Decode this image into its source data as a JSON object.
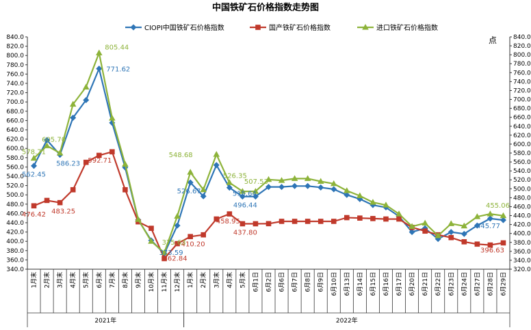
{
  "chart_data": {
    "type": "line",
    "title": "中国铁矿石价格指数走势图",
    "y_right_label": "点",
    "ylim": [
      340,
      840
    ],
    "y_right_lim": [
      320,
      840
    ],
    "y_ticks": [
      "340.0",
      "360.0",
      "380.0",
      "400.0",
      "420.0",
      "440.0",
      "460.0",
      "480.0",
      "500.0",
      "520.0",
      "540.0",
      "560.0",
      "580.0",
      "600.0",
      "620.0",
      "640.0",
      "660.0",
      "680.0",
      "700.0",
      "720.0",
      "740.0",
      "760.0",
      "780.0",
      "800.0",
      "820.0",
      "840.0"
    ],
    "y_right_ticks": [
      "320.0",
      "340.0",
      "360.0",
      "380.0",
      "400.0",
      "420.0",
      "440.0",
      "460.0",
      "480.0",
      "500.0",
      "520.0",
      "540.0",
      "560.0",
      "580.0",
      "600.0",
      "620.0",
      "640.0",
      "660.0",
      "680.0",
      "700.0",
      "720.0",
      "740.0",
      "760.0",
      "780.0",
      "800.0",
      "820.0",
      "840.0"
    ],
    "categories": [
      "1月末",
      "2月末",
      "3月末",
      "4月末",
      "5月末",
      "6月末",
      "7月末",
      "8月末",
      "9月末",
      "10月末",
      "11月末",
      "12月末",
      "1月末",
      "2月末",
      "3月末",
      "4月末",
      "5月末",
      "6月1日",
      "6月2日",
      "6月6日",
      "6月7日",
      "6月8日",
      "6月9日",
      "6月10日",
      "6月13日",
      "6月14日",
      "6月15日",
      "6月16日",
      "6月17日",
      "6月20日",
      "6月21日",
      "6月22日",
      "6月23日",
      "6月24日",
      "6月27日",
      "6月28日",
      "6月29日"
    ],
    "year_groups": [
      {
        "label": "2021年",
        "count": 12
      },
      {
        "label": "2022年",
        "count": 25
      }
    ],
    "legend_position": "top",
    "grid": false,
    "series": [
      {
        "name": "CIOPI中国铁矿石价格指数",
        "color": "#2E75B6",
        "marker": "diamond",
        "values": [
          562.45,
          618,
          586.23,
          666,
          704,
          771.62,
          655,
          559,
          446,
          402,
          373.59,
          434,
          526.67,
          497,
          564,
          515.64,
          496.44,
          496.44,
          517,
          517,
          519,
          519,
          516,
          512,
          500,
          491,
          478,
          473,
          454,
          420,
          428,
          405,
          420,
          416,
          434,
          449,
          445.77
        ]
      },
      {
        "name": "国产铁矿石价格指数",
        "color": "#C0392B",
        "marker": "square",
        "values": [
          476.42,
          488,
          483.25,
          511,
          570,
          585,
          592.71,
          511,
          442,
          428,
          362.84,
          395,
          410.2,
          414,
          448,
          458.95,
          437.8,
          437.8,
          438,
          443,
          443,
          443,
          443,
          443,
          451,
          450,
          449,
          448,
          448,
          430,
          422,
          414,
          408,
          399,
          394,
          392,
          396.63
        ]
      },
      {
        "name": "进口铁矿石价格指数",
        "color": "#8DB33A",
        "marker": "triangle",
        "values": [
          578.71,
          605.7,
          590,
          695,
          732,
          805.44,
          665,
          566,
          447,
          400,
          375.63,
          454,
          548.68,
          511,
          587,
          526.35,
          507.53,
          507.53,
          533,
          531,
          535,
          535,
          529,
          524,
          509,
          498,
          484,
          478,
          459,
          432,
          439,
          412,
          438,
          433,
          453,
          459,
          455.06
        ]
      }
    ],
    "data_labels": [
      {
        "series": 0,
        "index": 0,
        "text": "562.45"
      },
      {
        "series": 0,
        "index": 2,
        "text": "586.23"
      },
      {
        "series": 0,
        "index": 5,
        "text": "771.62"
      },
      {
        "series": 0,
        "index": 10,
        "text": "373.59"
      },
      {
        "series": 0,
        "index": 12,
        "text": "526.67"
      },
      {
        "series": 0,
        "index": 15,
        "text": "515.64"
      },
      {
        "series": 0,
        "index": 16,
        "text": "496.44"
      },
      {
        "series": 0,
        "index": 36,
        "text": "445.77"
      },
      {
        "series": 1,
        "index": 0,
        "text": "476.42"
      },
      {
        "series": 1,
        "index": 2,
        "text": "483.25"
      },
      {
        "series": 1,
        "index": 6,
        "text": "592.71"
      },
      {
        "series": 1,
        "index": 10,
        "text": "362.84"
      },
      {
        "series": 1,
        "index": 12,
        "text": "410.20"
      },
      {
        "series": 1,
        "index": 15,
        "text": "458.95"
      },
      {
        "series": 1,
        "index": 16,
        "text": "437.80"
      },
      {
        "series": 1,
        "index": 36,
        "text": "396.63"
      },
      {
        "series": 2,
        "index": 0,
        "text": "578.71"
      },
      {
        "series": 2,
        "index": 1,
        "text": "605.70"
      },
      {
        "series": 2,
        "index": 5,
        "text": "805.44"
      },
      {
        "series": 2,
        "index": 10,
        "text": "375.63"
      },
      {
        "series": 2,
        "index": 12,
        "text": "548.68"
      },
      {
        "series": 2,
        "index": 15,
        "text": "526.35"
      },
      {
        "series": 2,
        "index": 16,
        "text": "507.53"
      },
      {
        "series": 2,
        "index": 36,
        "text": "455.06"
      }
    ]
  }
}
